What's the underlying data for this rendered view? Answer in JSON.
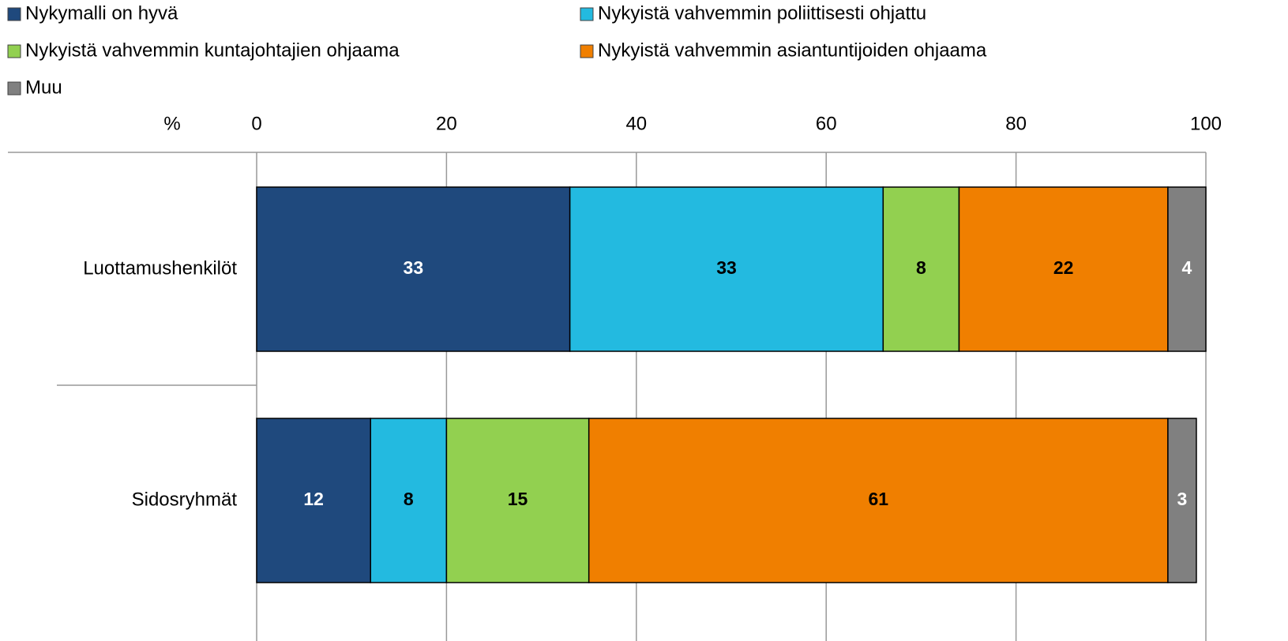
{
  "chart_data": {
    "type": "stacked_bar_horizontal",
    "x_label": "%",
    "categories": [
      "Luottamushenkilöt",
      "Sidosryhmät"
    ],
    "series": [
      {
        "name": "Nykymalli on hyvä",
        "color": "#1f497d",
        "label_color": "#ffffff",
        "values": [
          33,
          12
        ]
      },
      {
        "name": "Nykyistä vahvemmin poliittisesti ohjattu",
        "color": "#23bae0",
        "label_color": "#000000",
        "values": [
          33,
          8
        ]
      },
      {
        "name": "Nykyistä vahvemmin kuntajohtajien ohjaama",
        "color": "#92d050",
        "label_color": "#000000",
        "values": [
          8,
          15
        ]
      },
      {
        "name": "Nykyistä vahvemmin asiantuntijoiden ohjaama",
        "color": "#f07f00",
        "label_color": "#000000",
        "values": [
          22,
          61
        ]
      },
      {
        "name": "Muu",
        "color": "#808080",
        "label_color": "#ffffff",
        "values": [
          4,
          3
        ]
      }
    ],
    "xlim": [
      0,
      100
    ],
    "xticks": [
      0,
      20,
      40,
      60,
      80,
      100
    ],
    "grid": true,
    "legend": "top"
  }
}
